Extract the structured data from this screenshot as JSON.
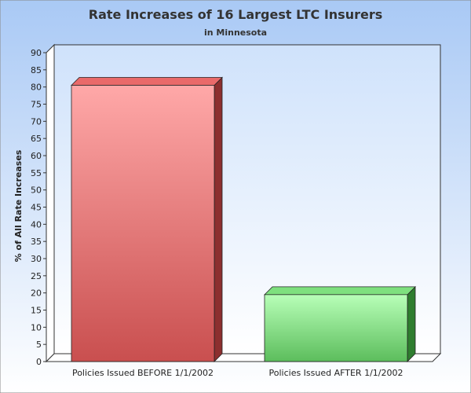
{
  "chart_data": {
    "type": "bar",
    "title": "Rate Increases of 16 Largest LTC Insurers",
    "subtitle": "in Minnesota",
    "xlabel": "",
    "ylabel": "% of All Rate Increases",
    "categories": [
      "Policies Issued BEFORE 1/1/2002",
      "Policies Issued AFTER 1/1/2002"
    ],
    "values": [
      80.5,
      19.5
    ],
    "ylim": [
      0,
      90
    ],
    "yticks": [
      0,
      5,
      10,
      15,
      20,
      25,
      30,
      35,
      40,
      45,
      50,
      55,
      60,
      65,
      70,
      75,
      80,
      85,
      90
    ],
    "grid": false,
    "legend": "none",
    "bar_colors": [
      {
        "light": "#ffa8a8",
        "dark": "#c94f4f",
        "side": "#8c2f2f",
        "top": "#e96a6a"
      },
      {
        "light": "#b8ffb8",
        "dark": "#5cbd5c",
        "side": "#2f7d2f",
        "top": "#7ee07e"
      }
    ],
    "background": {
      "top": "#a9c9f5",
      "bottom": "#ffffff"
    },
    "plot_background": {
      "top": "#cfe2fb",
      "bottom": "#ffffff"
    }
  }
}
